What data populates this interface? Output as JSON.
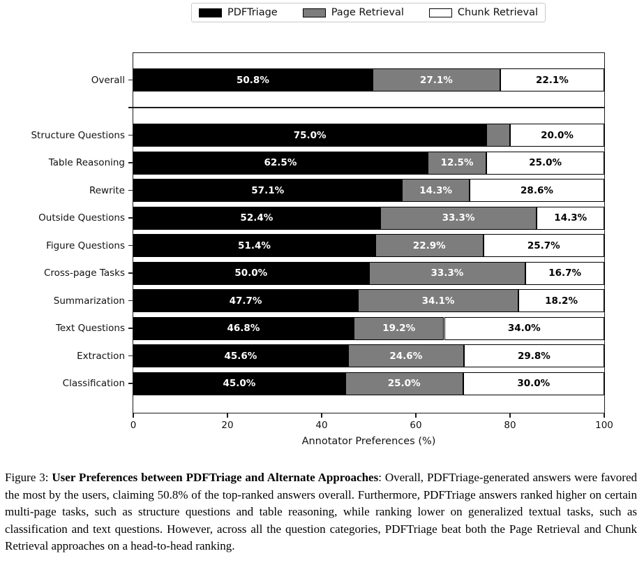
{
  "figure": {
    "legend": [
      {
        "label": "PDFTriage",
        "color": "#000000"
      },
      {
        "label": "Page Retrieval",
        "color": "#7d7d7d"
      },
      {
        "label": "Chunk Retrieval",
        "color": "#ffffff"
      }
    ]
  },
  "chart_data": {
    "type": "bar",
    "stacked": true,
    "orientation": "horizontal",
    "title": "",
    "xlabel": "Annotator Preferences (%)",
    "ylabel": "",
    "xlim": [
      0,
      100
    ],
    "xticks": [
      "0",
      "20",
      "40",
      "60",
      "80",
      "100"
    ],
    "grid": false,
    "legend_position": "top-center",
    "categories": [
      "Overall",
      "",
      "Structure Questions",
      "Table Reasoning",
      "Rewrite",
      "Outside Questions",
      "Figure Questions",
      "Cross-page Tasks",
      "Summarization",
      "Text Questions",
      "Extraction",
      "Classification"
    ],
    "series": [
      {
        "name": "PDFTriage",
        "color": "#000000",
        "text_color": "#ffffff",
        "values": [
          50.8,
          null,
          75.0,
          62.5,
          57.1,
          52.4,
          51.4,
          50.0,
          47.7,
          46.8,
          45.6,
          45.0
        ],
        "labels": [
          "50.8%",
          "",
          "75.0%",
          "62.5%",
          "57.1%",
          "52.4%",
          "51.4%",
          "50.0%",
          "47.7%",
          "46.8%",
          "45.6%",
          "45.0%"
        ]
      },
      {
        "name": "Page Retrieval",
        "color": "#7d7d7d",
        "text_color": "#ffffff",
        "values": [
          27.1,
          null,
          5.0,
          12.5,
          14.3,
          33.3,
          22.9,
          33.3,
          34.1,
          19.2,
          24.6,
          25.0
        ],
        "labels": [
          "27.1%",
          "",
          "",
          "12.5%",
          "14.3%",
          "33.3%",
          "22.9%",
          "33.3%",
          "34.1%",
          "19.2%",
          "24.6%",
          "25.0%"
        ]
      },
      {
        "name": "Chunk Retrieval",
        "color": "#ffffff",
        "text_color": "#000000",
        "values": [
          22.1,
          null,
          20.0,
          25.0,
          28.6,
          14.3,
          25.7,
          16.7,
          18.2,
          34.0,
          29.8,
          30.0
        ],
        "labels": [
          "22.1%",
          "",
          "20.0%",
          "25.0%",
          "28.6%",
          "14.3%",
          "25.7%",
          "16.7%",
          "18.2%",
          "34.0%",
          "29.8%",
          "30.0%"
        ]
      }
    ]
  },
  "caption": {
    "prefix": "Figure 3: ",
    "bold": "User Preferences between PDFTriage and Alternate Approaches",
    "rest": ": Overall, PDFTriage-generated answers were favored the most by the users, claiming 50.8% of the top-ranked answers overall. Furthermore, PDFTriage answers ranked higher on certain multi-page tasks, such as structure questions and table reasoning, while ranking lower on generalized textual tasks, such as classification and text questions. However, across all the question categories, PDFTriage beat both the Page Retrieval and Chunk Retrieval approaches on a head-to-head ranking."
  }
}
